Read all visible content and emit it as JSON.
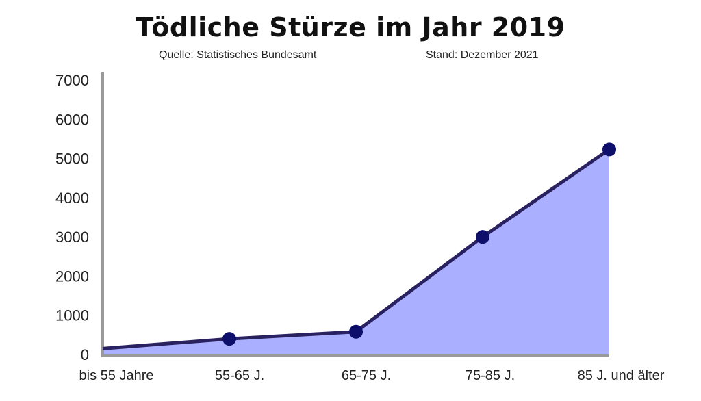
{
  "chart_data": {
    "type": "area",
    "title": "Tödliche Stürze im Jahr 2019",
    "source": "Quelle: Statistisches Bundesamt",
    "stand": "Stand: Dezember 2021",
    "categories": [
      "bis 55 Jahre",
      "55-65 J.",
      "65-75 J.",
      "75-85 J.",
      "85 J. und älter"
    ],
    "values": [
      150,
      400,
      580,
      3000,
      5230
    ],
    "markers": [
      false,
      true,
      true,
      true,
      true
    ],
    "ylim": [
      0,
      7000
    ],
    "yticks": [
      0,
      1000,
      2000,
      3000,
      4000,
      5000,
      6000,
      7000
    ],
    "ytick_labels": [
      "0",
      "1000",
      "2000",
      "3000",
      "4000",
      "5000",
      "6000",
      "7000"
    ],
    "xlabel": "",
    "ylabel": "",
    "colors": {
      "fill": "#aab0ff",
      "line": "#2a2260",
      "marker": "#0d0f6b",
      "axis": "#999999"
    }
  }
}
